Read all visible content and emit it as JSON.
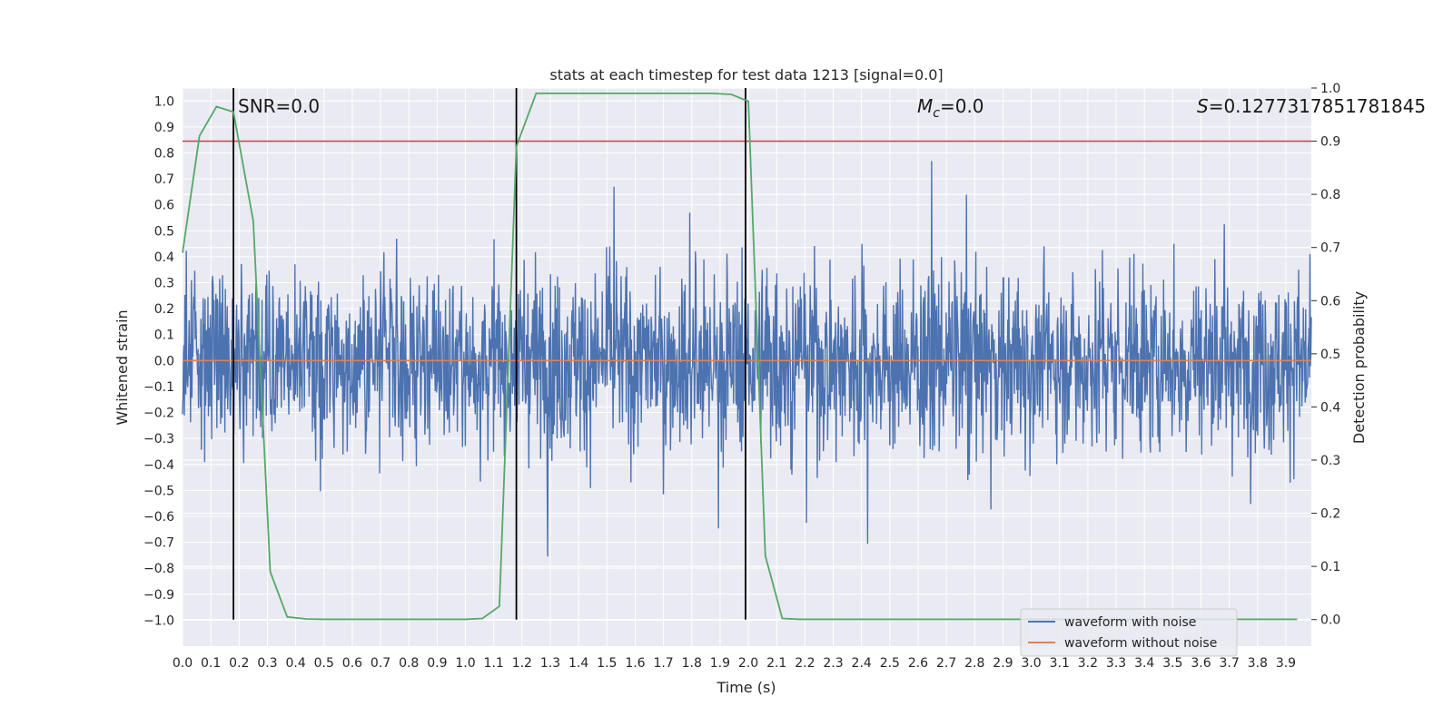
{
  "chart_data": {
    "type": "line",
    "title": "stats at each timestep for test data 1213 [signal=0.0]",
    "xlabel": "Time (s)",
    "ylabel": "Whitened strain",
    "y2label": "Detection probability",
    "xlim": [
      0.0,
      3.99
    ],
    "ylim": [
      -1.1,
      1.05
    ],
    "y2lim": [
      -0.05,
      1.0
    ],
    "x_ticks": [
      "0.0",
      "0.1",
      "0.2",
      "0.3",
      "0.4",
      "0.5",
      "0.6",
      "0.7",
      "0.8",
      "0.9",
      "1.0",
      "1.1",
      "1.2",
      "1.3",
      "1.4",
      "1.5",
      "1.6",
      "1.7",
      "1.8",
      "1.9",
      "2.0",
      "2.1",
      "2.2",
      "2.3",
      "2.4",
      "2.5",
      "2.6",
      "2.7",
      "2.8",
      "2.9",
      "3.0",
      "3.1",
      "3.2",
      "3.3",
      "3.4",
      "3.5",
      "3.6",
      "3.7",
      "3.8",
      "3.9"
    ],
    "y_ticks": [
      "1.0",
      "0.9",
      "0.8",
      "0.7",
      "0.6",
      "0.5",
      "0.4",
      "0.3",
      "0.2",
      "0.1",
      "0.0",
      "−0.1",
      "−0.2",
      "−0.3",
      "−0.4",
      "−0.5",
      "−0.6",
      "−0.7",
      "−0.8",
      "−0.9",
      "−1.0"
    ],
    "y2_ticks": [
      "1.0",
      "0.9",
      "0.8",
      "0.7",
      "0.6",
      "0.5",
      "0.4",
      "0.3",
      "0.2",
      "0.1",
      "0.0"
    ],
    "series": [
      {
        "name": "waveform with noise",
        "color": "#4c72b0",
        "description": "dense noise, roughly within -1.0 to 1.0"
      },
      {
        "name": "waveform without noise",
        "color": "#dd8452",
        "values_constant": 0.0
      }
    ],
    "detection_probability": {
      "color": "#55a868",
      "x": [
        0.0,
        0.06,
        0.12,
        0.18,
        0.25,
        0.31,
        0.37,
        0.44,
        0.5,
        0.56,
        0.62,
        0.69,
        0.75,
        0.81,
        0.87,
        0.94,
        1.0,
        1.06,
        1.12,
        1.18,
        1.25,
        1.31,
        1.37,
        1.44,
        1.5,
        1.56,
        1.62,
        1.69,
        1.75,
        1.81,
        1.87,
        1.94,
        2.0,
        2.06,
        2.12,
        2.18,
        2.25,
        2.31,
        2.37,
        2.44,
        2.5,
        2.56,
        2.62,
        2.69,
        2.75,
        2.81,
        2.87,
        2.94,
        3.0,
        3.06,
        3.12,
        3.18,
        3.25,
        3.31,
        3.37,
        3.44,
        3.5,
        3.56,
        3.62,
        3.69,
        3.75,
        3.81,
        3.87,
        3.94
      ],
      "values": [
        0.69,
        0.91,
        0.965,
        0.955,
        0.75,
        0.09,
        0.005,
        0.001,
        0.0005,
        0.0005,
        0.0005,
        0.0005,
        0.0005,
        0.0005,
        0.0005,
        0.0005,
        0.0005,
        0.002,
        0.025,
        0.89,
        0.99,
        0.99,
        0.99,
        0.99,
        0.99,
        0.99,
        0.99,
        0.99,
        0.99,
        0.99,
        0.99,
        0.988,
        0.975,
        0.12,
        0.002,
        0.0005,
        0.0005,
        0.0005,
        0.0005,
        0.0005,
        0.0005,
        0.0005,
        0.0005,
        0.0005,
        0.0005,
        0.0005,
        0.0005,
        0.0005,
        0.0005,
        0.0005,
        0.0005,
        0.0005,
        0.0005,
        0.0005,
        0.0005,
        0.0005,
        0.0005,
        0.0005,
        0.0005,
        0.0005,
        0.0005,
        0.0005,
        0.0005,
        0.0005
      ]
    },
    "threshold_line": {
      "color": "#c44e52",
      "value": 0.9
    },
    "vertical_lines": {
      "color": "#000000",
      "x": [
        0.18,
        1.18,
        1.99
      ]
    },
    "annotations": {
      "snr": "SNR=0.0",
      "mc_symbol": "M",
      "mc_sub": "c",
      "mc_value": "=0.0",
      "s_symbol": "S",
      "s_value": "=0.1277317851781845"
    },
    "legend": {
      "placement": "lower-right",
      "entries": [
        "waveform with noise",
        "waveform without noise"
      ]
    }
  }
}
